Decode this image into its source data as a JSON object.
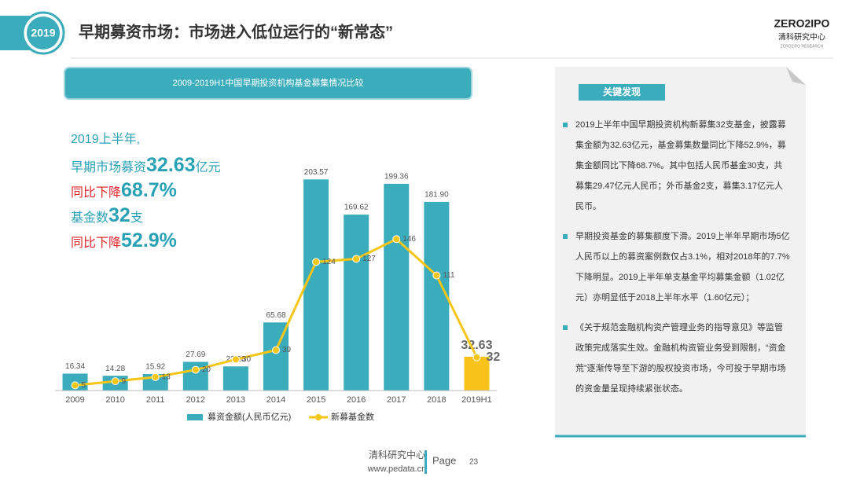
{
  "header": {
    "badge": "2019",
    "title": "早期募资市场：市场进入低位运行的“新常态”"
  },
  "logo": {
    "brand": "ZERO2IPO",
    "name": "清科研究中心",
    "sub": "ZERO2IPO RESEARCH"
  },
  "callouts": [
    [
      {
        "text": "2019上半年,",
        "style": "teal"
      }
    ],
    [
      {
        "text": "早期市场募资",
        "style": "teal"
      },
      {
        "text": "32.63",
        "style": "big"
      },
      {
        "text": "亿元",
        "style": "teal"
      }
    ],
    [
      {
        "text": "同比下降",
        "style": "red"
      },
      {
        "text": "68.7%",
        "style": "big"
      }
    ],
    [
      {
        "text": "基金数",
        "style": "teal"
      },
      {
        "text": "32",
        "style": "big"
      },
      {
        "text": "支",
        "style": "teal"
      }
    ],
    [
      {
        "text": "同比下降",
        "style": "red"
      },
      {
        "text": "52.9%",
        "style": "big"
      }
    ]
  ],
  "findings": {
    "title": "关键发现",
    "items": [
      "2019上半年中国早期投资机构新募集32支基金，披露募集金额为32.63亿元，基金募集数量同比下降52.9%，募集金额同比下降68.7%。其中包括人民币基金30支，共募集29.47亿元人民币；外币基金2支，募集3.17亿元人民币。",
      "早期投资基金的募集额度下滑。2019上半年早期市场5亿人民币以上的募资案例数仅占3.1%，相对2018年的7.7%下降明显。2019上半年单支基金平均募集金额（1.02亿元）亦明显低于2018上半年水平（1.60亿元）；",
      "《关于规范金融机构资产管理业务的指导意见》等监管政策完成落实生效。金融机构资管业务受到限制，“资金荒”逐渐传导至下游的股权投资市场，今可投于早期市场的资金量呈现持续紧张状态。"
    ]
  },
  "footer": {
    "name": "清科研究中心",
    "url": "www.pedata.cn",
    "page_label": "Page",
    "page": "23"
  },
  "chart_data": {
    "type": "combo",
    "title": "2009-2019H1中国早期投资机构基金募集情况比较",
    "categories": [
      "2009",
      "2010",
      "2011",
      "2012",
      "2013",
      "2014",
      "2015",
      "2016",
      "2017",
      "2018",
      "2019H1"
    ],
    "series": [
      {
        "name": "募资金额(人民币亿元)",
        "type": "bar",
        "color": "#3aacbb",
        "highlight_color": "#f7c21a",
        "values": [
          16.34,
          14.28,
          15.92,
          27.69,
          23.28,
          65.68,
          203.57,
          169.62,
          199.36,
          181.9,
          32.63
        ],
        "value_labels": [
          "16.34",
          "14.28",
          "15.92",
          "27.69",
          "23.28",
          "65.68",
          "203.57",
          "169.62",
          "199.36",
          "181.90",
          "32.63"
        ]
      },
      {
        "name": "新募基金数",
        "type": "line",
        "axis": "y2",
        "color": "#f5c518",
        "values": [
          5,
          9,
          13,
          20,
          30,
          39,
          124,
          127,
          146,
          111,
          32
        ]
      }
    ],
    "ylim": [
      0,
      225
    ],
    "y2lim": [
      0,
      225
    ],
    "legend": "bottom"
  }
}
